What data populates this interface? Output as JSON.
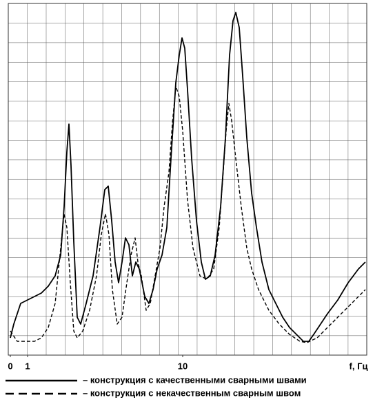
{
  "chart_data": {
    "type": "line",
    "x_label": "f, Гц",
    "xlim": [
      0,
      20.6
    ],
    "xticks": [
      0,
      1,
      10
    ],
    "ylim": [
      0,
      102
    ],
    "grid": true,
    "series": [
      {
        "name": "– конструкция с качественными сварными швами",
        "color": "#000000",
        "line_style": "solid",
        "x": [
          0,
          0.2,
          0.6,
          1,
          1.4,
          1.8,
          2.2,
          2.6,
          2.92,
          3.12,
          3.28,
          3.4,
          3.52,
          3.68,
          3.88,
          4.08,
          4.4,
          4.8,
          5.2,
          5.48,
          5.68,
          5.88,
          6.08,
          6.28,
          6.48,
          6.68,
          6.88,
          7.08,
          7.28,
          7.48,
          7.8,
          8.04,
          8.28,
          8.52,
          8.8,
          9.08,
          9.32,
          9.6,
          9.8,
          9.96,
          10.12,
          10.28,
          10.52,
          10.8,
          11.08,
          11.32,
          11.6,
          11.88,
          12.2,
          12.48,
          12.72,
          12.92,
          13.08,
          13.28,
          13.48,
          13.72,
          14,
          14.28,
          14.6,
          15,
          15.4,
          15.8,
          16.2,
          16.6,
          17,
          17.32,
          17.6,
          18,
          18.4,
          19,
          19.6,
          20.2,
          20.6
        ],
        "values": [
          5,
          9,
          15,
          16,
          17,
          18,
          20,
          23,
          29,
          43,
          59,
          67,
          55,
          33,
          11,
          9,
          15,
          23,
          37,
          48,
          49,
          39,
          27,
          21,
          27,
          34,
          32,
          23,
          27,
          25,
          17,
          15,
          19,
          25,
          29,
          37,
          57,
          79,
          87,
          92,
          89,
          77,
          57,
          39,
          27,
          22,
          23,
          29,
          43,
          63,
          87,
          97,
          99.4,
          95,
          81,
          63,
          47,
          37,
          27,
          19,
          15,
          11,
          8,
          6,
          4,
          4,
          6,
          9,
          12,
          16,
          21,
          25,
          27
        ]
      },
      {
        "name": "– конструкция с некачественным сварным швом",
        "color": "#000000",
        "line_style": "dashed",
        "x": [
          0,
          0.4,
          0.8,
          1.4,
          1.8,
          2.2,
          2.6,
          2.92,
          3.12,
          3.28,
          3.48,
          3.68,
          3.88,
          4.2,
          4.6,
          5,
          5.28,
          5.52,
          5.72,
          5.92,
          6.2,
          6.48,
          6.76,
          7,
          7.24,
          7.4,
          7.6,
          7.88,
          8.12,
          8.4,
          8.68,
          8.92,
          9.2,
          9.4,
          9.6,
          9.8,
          10,
          10.28,
          10.6,
          11,
          11.4,
          11.8,
          12.12,
          12.32,
          12.52,
          12.68,
          12.84,
          13.08,
          13.4,
          13.72,
          14,
          14.4,
          15,
          15.6,
          16.2,
          16.8,
          17.2,
          17.8,
          18.4,
          19,
          19.6,
          20.2,
          20.6
        ],
        "values": [
          7,
          4,
          4,
          4,
          5,
          8,
          15,
          31,
          41,
          37,
          21,
          7,
          5,
          7,
          13,
          23,
          35,
          41,
          35,
          19,
          9,
          11,
          21,
          29,
          34,
          27,
          23,
          13,
          15,
          23,
          31,
          43,
          53,
          67,
          78,
          75,
          65,
          45,
          31,
          23,
          22,
          25,
          37,
          51,
          65,
          73,
          68,
          57,
          43,
          31,
          25,
          19,
          13,
          9,
          6,
          4,
          3.6,
          5,
          8,
          11,
          14,
          17,
          19
        ]
      }
    ]
  }
}
